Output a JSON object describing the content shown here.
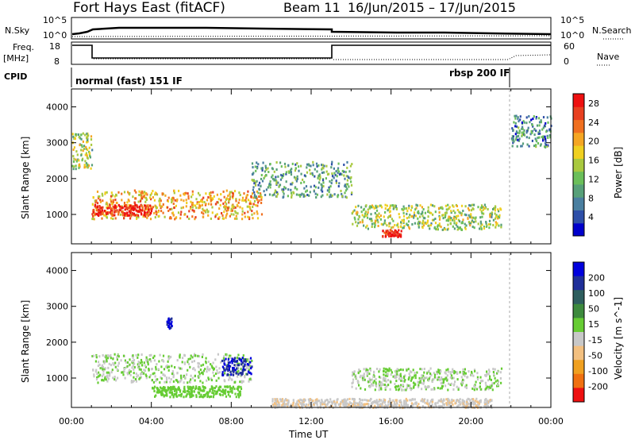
{
  "header": {
    "station": "Fort Hays East (fitACF)",
    "beam": "Beam 11",
    "date_range": "16/Jun/2015 – 17/Jun/2015"
  },
  "panels": {
    "nsky": {
      "left_label": "N.Sky",
      "ticks": [
        "10^5",
        "10^0"
      ],
      "right_label": "N.Search",
      "right_ticks": [
        "10^5",
        "10^0"
      ]
    },
    "freq": {
      "left_label_1": "Freq.",
      "left_label_2": "[MHz]",
      "ticks": [
        "18",
        "8"
      ],
      "right_label": "Nave",
      "right_ticks": [
        "60",
        "0"
      ]
    },
    "cpid": {
      "label": "CPID",
      "mode_1": "normal (fast) 151 IF",
      "mode_2": "rbsp 200 IF"
    }
  },
  "colors": {
    "power_scale": [
      "#0000cc",
      "#2e4fa8",
      "#4a7fa0",
      "#57a079",
      "#6bbf5a",
      "#a9c93f",
      "#f0d020",
      "#f5a623",
      "#f07020",
      "#e84020",
      "#ee1010"
    ],
    "velocity_scale": [
      "#0000dd",
      "#1f2f99",
      "#2e5e5e",
      "#3d8a3d",
      "#66cc33",
      "#c8c8c8",
      "#f3c080",
      "#f0a020",
      "#f07010",
      "#ee1010"
    ]
  },
  "chart_data": [
    {
      "type": "heatmap",
      "name": "power",
      "xlabel": "Time UT",
      "ylabel": "Slant Range [km]",
      "x_range": [
        "16/Jun/2015 00:00",
        "17/Jun/2015 00:00"
      ],
      "ylim": [
        180,
        4500
      ],
      "x_ticks": [
        "00:00",
        "04:00",
        "08:00",
        "12:00",
        "16:00",
        "20:00",
        "00:00"
      ],
      "y_ticks": [
        1000,
        2000,
        3000,
        4000
      ],
      "colorbar": {
        "label": "Power [dB]",
        "ticks": [
          4,
          8,
          12,
          16,
          20,
          24,
          28
        ],
        "range": [
          0,
          30
        ]
      },
      "features": [
        {
          "desc": "main band",
          "time_start": "01:00",
          "time_end": "09:30",
          "range_km": [
            900,
            1700
          ],
          "power_db": 20
        },
        {
          "desc": "high power core",
          "time_start": "01:00",
          "time_end": "04:00",
          "range_km": [
            1000,
            1300
          ],
          "power_db": 28
        },
        {
          "desc": "early echo",
          "time_start": "00:00",
          "time_end": "01:00",
          "range_km": [
            2300,
            3300
          ],
          "power_db": 14
        },
        {
          "desc": "late band",
          "time_start": "14:00",
          "time_end": "21:30",
          "range_km": [
            600,
            1300
          ],
          "power_db": 14
        },
        {
          "desc": "strong spot",
          "time_start": "15:30",
          "time_end": "16:30",
          "range_km": [
            400,
            600
          ],
          "power_db": 30
        },
        {
          "desc": "mid arc",
          "time_start": "09:00",
          "time_end": "14:00",
          "range_km": [
            1500,
            2500
          ],
          "power_db": 10
        },
        {
          "desc": "late far echo",
          "time_start": "22:00",
          "time_end": "24:00",
          "range_km": [
            2900,
            3800
          ],
          "power_db": 8
        }
      ]
    },
    {
      "type": "heatmap",
      "name": "velocity",
      "xlabel": "Time UT",
      "ylabel": "Slant Range [km]",
      "x_range": [
        "16/Jun/2015 00:00",
        "17/Jun/2015 00:00"
      ],
      "ylim": [
        180,
        4500
      ],
      "x_ticks": [
        "00:00",
        "04:00",
        "08:00",
        "12:00",
        "16:00",
        "20:00",
        "00:00"
      ],
      "y_ticks": [
        1000,
        2000,
        3000,
        4000
      ],
      "colorbar": {
        "label": "Velocity [m s^-1]",
        "ticks": [
          200,
          100,
          50,
          15,
          -15,
          -50,
          -100,
          -200
        ],
        "range": [
          -250,
          250
        ]
      },
      "features": [
        {
          "desc": "grey low velocity band",
          "time_start": "01:00",
          "time_end": "09:00",
          "range_km": [
            900,
            1700
          ],
          "velocity": 0
        },
        {
          "desc": "positive cluster",
          "time_start": "07:30",
          "time_end": "09:00",
          "range_km": [
            1100,
            1600
          ],
          "velocity": 200
        },
        {
          "desc": "green band",
          "time_start": "04:00",
          "time_end": "08:30",
          "range_km": [
            500,
            800
          ],
          "velocity": 30
        },
        {
          "desc": "negative near-range",
          "time_start": "10:00",
          "time_end": "21:00",
          "range_km": [
            200,
            450
          ],
          "velocity": -40
        },
        {
          "desc": "late grey band",
          "time_start": "14:00",
          "time_end": "21:30",
          "range_km": [
            700,
            1300
          ],
          "velocity": 0
        },
        {
          "desc": "blue spot",
          "time_start": "04:45",
          "time_end": "05:00",
          "range_km": [
            2400,
            2700
          ],
          "velocity": 200
        }
      ]
    }
  ]
}
